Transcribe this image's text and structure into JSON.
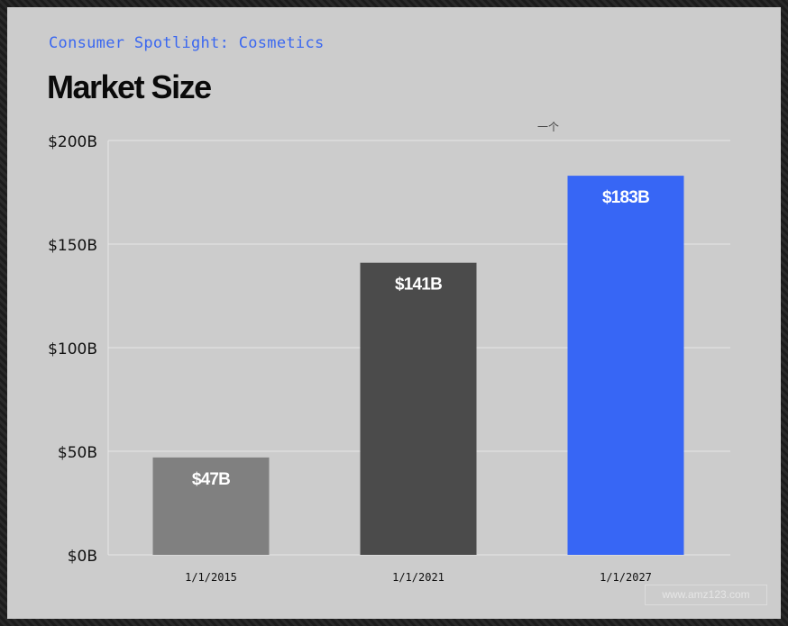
{
  "header": {
    "kicker": "Consumer Spotlight: Cosmetics",
    "title": "Market Size",
    "marker": "一个"
  },
  "watermark": "www.amz123.com",
  "colors": {
    "panel": "#cccccc",
    "kicker": "#3a67f0",
    "bar_2015": "#808080",
    "bar_2021": "#4b4b4b",
    "bar_2027": "#3766f5",
    "grid": "#e6e6e6"
  },
  "chart_data": {
    "type": "bar",
    "title": "Market Size",
    "xlabel": "",
    "ylabel": "",
    "categories": [
      "1/1/2015",
      "1/1/2021",
      "1/1/2027"
    ],
    "values": [
      47,
      141,
      183
    ],
    "data_labels": [
      "$47B",
      "$141B",
      "$183B"
    ],
    "bar_colors": [
      "#808080",
      "#4b4b4b",
      "#3766f5"
    ],
    "ylim": [
      0,
      200
    ],
    "yticks": [
      0,
      50,
      100,
      150,
      200
    ],
    "ytick_labels": [
      "$0B",
      "$50B",
      "$100B",
      "$150B",
      "$200B"
    ],
    "grid": true,
    "legend": "none"
  }
}
